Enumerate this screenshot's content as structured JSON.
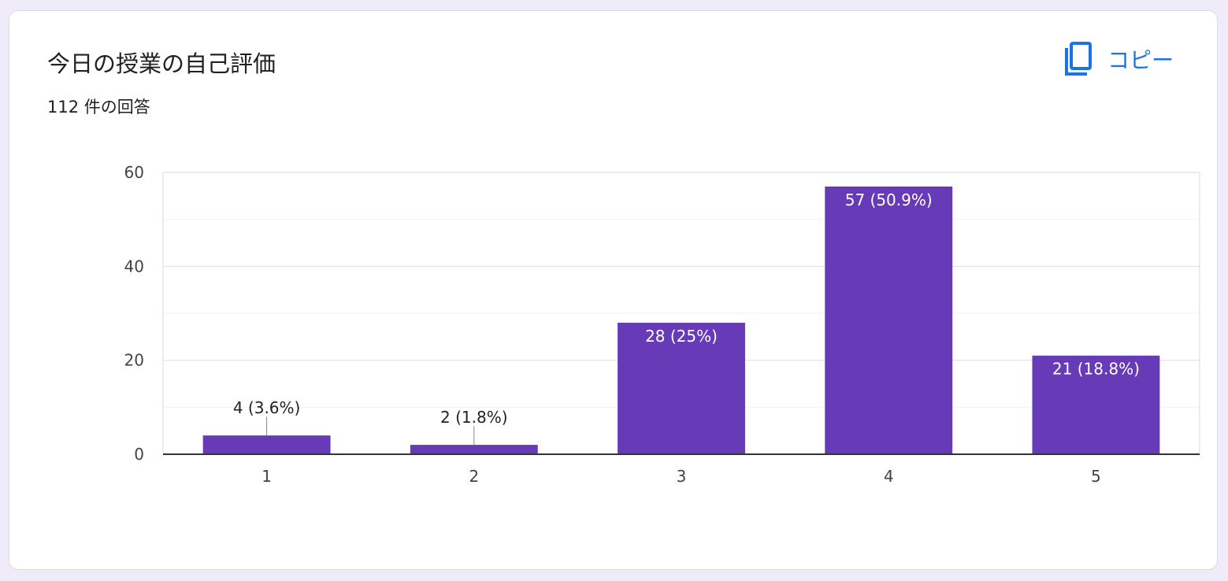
{
  "card": {
    "title": "今日の授業の自己評価",
    "response_count": "112 件の回答",
    "copy_label": "コピー",
    "copy_icon": "copy-icon"
  },
  "colors": {
    "bar": "#673ab7",
    "accent": "#1a73e8"
  },
  "chart_data": {
    "type": "bar",
    "title": "",
    "xlabel": "",
    "ylabel": "",
    "categories": [
      "1",
      "2",
      "3",
      "4",
      "5"
    ],
    "values": [
      4,
      2,
      28,
      57,
      21
    ],
    "data_labels": [
      "4 (3.6%)",
      "2 (1.8%)",
      "28 (25%)",
      "57 (50.9%)",
      "21 (18.8%)"
    ],
    "ylim": [
      0,
      60
    ],
    "yticks": [
      0,
      20,
      40,
      60
    ],
    "grid": true,
    "legend": "none"
  }
}
